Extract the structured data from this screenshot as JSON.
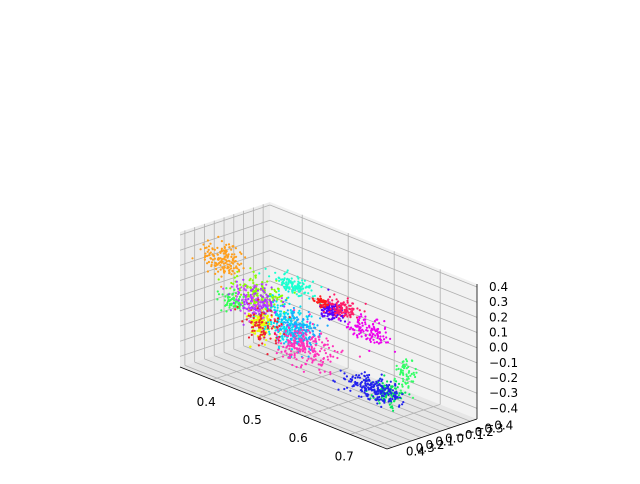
{
  "chart_data": {
    "type": "scatter",
    "projection": "3d",
    "title": "",
    "xlabel": "",
    "ylabel": "",
    "zlabel": "",
    "grid": true,
    "legend": "none",
    "xlim": [
      0.33,
      0.78
    ],
    "ylim": [
      -0.47,
      0.45
    ],
    "zlim": [
      -0.47,
      0.42
    ],
    "x_ticks": [
      0.4,
      0.5,
      0.6,
      0.7
    ],
    "x_tick_labels": [
      "0.4",
      "0.5",
      "0.6",
      "0.7"
    ],
    "y_ticks": [
      -0.4,
      -0.3,
      -0.2,
      -0.1,
      0.0,
      0.1,
      0.2,
      0.3,
      0.4
    ],
    "y_tick_labels": [
      "−0.4",
      "−0.3",
      "−0.2",
      "−0.1",
      "0.0",
      "0.1",
      "0.2",
      "0.3",
      "0.4"
    ],
    "z_ticks": [
      -0.4,
      -0.3,
      -0.2,
      -0.1,
      0.0,
      0.1,
      0.2,
      0.3,
      0.4
    ],
    "z_tick_labels": [
      "−0.4",
      "−0.3",
      "−0.2",
      "−0.1",
      "0.0",
      "0.1",
      "0.2",
      "0.3",
      "0.4"
    ],
    "series": [
      {
        "color": "#ff9f1c",
        "center": [
          0.4,
          0.34,
          0.3
        ],
        "spread": [
          0.02,
          0.05,
          0.05
        ],
        "count": 150
      },
      {
        "color": "#eaff00",
        "center": [
          0.34,
          -0.33,
          -0.33
        ],
        "spread": [
          0.012,
          0.035,
          0.06
        ],
        "count": 130
      },
      {
        "color": "#88ff00",
        "center": [
          0.46,
          0.27,
          0.13
        ],
        "spread": [
          0.025,
          0.06,
          0.05
        ],
        "count": 140
      },
      {
        "color": "#33ff55",
        "center": [
          0.41,
          0.3,
          0.03
        ],
        "spread": [
          0.015,
          0.03,
          0.03
        ],
        "count": 60
      },
      {
        "color": "#00e85a",
        "center": [
          0.68,
          -0.02,
          -0.33
        ],
        "spread": [
          0.015,
          0.04,
          0.04
        ],
        "count": 100
      },
      {
        "color": "#33ff66",
        "center": [
          0.7,
          -0.11,
          -0.19
        ],
        "spread": [
          0.01,
          0.03,
          0.05
        ],
        "count": 60
      },
      {
        "color": "#19ffd0",
        "center": [
          0.57,
          0.41,
          0.35
        ],
        "spread": [
          0.02,
          0.03,
          0.025
        ],
        "count": 120
      },
      {
        "color": "#00e0f0",
        "center": [
          0.49,
          0.1,
          -0.08
        ],
        "spread": [
          0.02,
          0.05,
          0.08
        ],
        "count": 220
      },
      {
        "color": "#1aa8ff",
        "center": [
          0.5,
          0.02,
          -0.13
        ],
        "spread": [
          0.02,
          0.04,
          0.06
        ],
        "count": 140
      },
      {
        "color": "#2222ee",
        "center": [
          0.61,
          -0.22,
          -0.42
        ],
        "spread": [
          0.03,
          0.05,
          0.03
        ],
        "count": 220
      },
      {
        "color": "#5500ff",
        "center": [
          0.61,
          0.21,
          0.18
        ],
        "spread": [
          0.01,
          0.03,
          0.03
        ],
        "count": 110
      },
      {
        "color": "#ff1a1a",
        "center": [
          0.59,
          0.22,
          0.22
        ],
        "spread": [
          0.006,
          0.015,
          0.015
        ],
        "count": 50
      },
      {
        "color": "#ff1a66",
        "center": [
          0.64,
          0.24,
          0.24
        ],
        "spread": [
          0.015,
          0.03,
          0.03
        ],
        "count": 110
      },
      {
        "color": "#ee00ee",
        "center": [
          0.66,
          0.08,
          0.09
        ],
        "spread": [
          0.02,
          0.04,
          0.04
        ],
        "count": 120
      },
      {
        "color": "#aa33ff",
        "center": [
          0.41,
          0.03,
          -0.05
        ],
        "spread": [
          0.02,
          0.06,
          0.05
        ],
        "count": 110
      },
      {
        "color": "#ff33bb",
        "center": [
          0.48,
          -0.13,
          -0.28
        ],
        "spread": [
          0.03,
          0.06,
          0.06
        ],
        "count": 220
      },
      {
        "color": "#ee2233",
        "center": [
          0.4,
          -0.05,
          -0.23
        ],
        "spread": [
          0.02,
          0.05,
          0.07
        ],
        "count": 90
      },
      {
        "color": "#cc44ff",
        "center": [
          0.38,
          -0.06,
          -0.08
        ],
        "spread": [
          0.02,
          0.05,
          0.05
        ],
        "count": 60
      }
    ]
  }
}
